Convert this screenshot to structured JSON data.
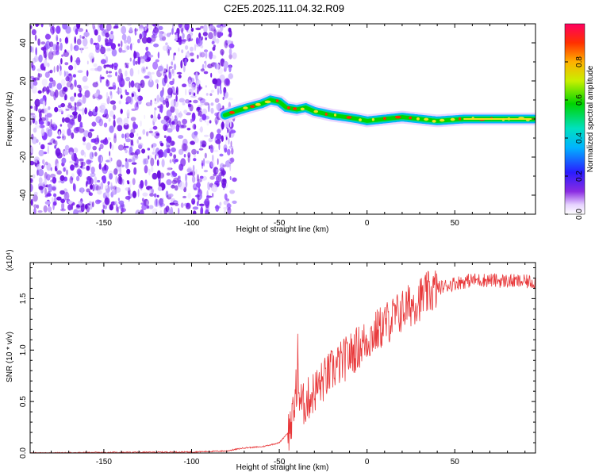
{
  "title": "C2E5.2025.111.04.32.R09",
  "chart_data": [
    {
      "type": "heatmap",
      "xlabel": "Height of straight line (km)",
      "ylabel": "Frequency (Hz)",
      "xlim": [
        -192,
        96
      ],
      "ylim": [
        -50,
        50
      ],
      "x_ticks": [
        -150,
        -100,
        -50,
        0,
        50
      ],
      "y_ticks": [
        -40,
        -20,
        0,
        20,
        40
      ],
      "noise_region_x": [
        -192,
        -80
      ],
      "signal_track": [
        {
          "x": -81,
          "y": 2
        },
        {
          "x": -75,
          "y": 4
        },
        {
          "x": -68,
          "y": 6
        },
        {
          "x": -60,
          "y": 8
        },
        {
          "x": -55,
          "y": 10
        },
        {
          "x": -50,
          "y": 9
        },
        {
          "x": -46,
          "y": 6
        },
        {
          "x": -40,
          "y": 5
        },
        {
          "x": -35,
          "y": 6
        },
        {
          "x": -30,
          "y": 4
        },
        {
          "x": -25,
          "y": 3
        },
        {
          "x": -20,
          "y": 2
        },
        {
          "x": -12,
          "y": 1
        },
        {
          "x": -5,
          "y": 0
        },
        {
          "x": 0,
          "y": -1
        },
        {
          "x": 10,
          "y": 0
        },
        {
          "x": 20,
          "y": 1
        },
        {
          "x": 30,
          "y": 0
        },
        {
          "x": 40,
          "y": -1
        },
        {
          "x": 55,
          "y": 0
        },
        {
          "x": 70,
          "y": 0
        },
        {
          "x": 85,
          "y": 0
        },
        {
          "x": 95,
          "y": 0
        }
      ],
      "colorbar": {
        "label": "Normalized spectral amplitude",
        "range": [
          0,
          1
        ],
        "ticks": [
          "0.0",
          "0.2",
          "0.4",
          "0.6",
          "0.8"
        ]
      }
    },
    {
      "type": "line",
      "xlabel": "Height of straight line (km)",
      "ylabel": "SNR (10 * v/v)",
      "y_multiplier": "(x10⁴)",
      "xlim": [
        -192,
        96
      ],
      "ylim": [
        0,
        1.85
      ],
      "x_ticks": [
        -150,
        -100,
        -50,
        0,
        50
      ],
      "y_ticks": [
        "0.0",
        "0.5",
        "1.0",
        "1.5"
      ],
      "series": [
        {
          "color": "#e8383a",
          "envelope": [
            {
              "x": -192,
              "y": 0.0
            },
            {
              "x": -100,
              "y": 0.01
            },
            {
              "x": -80,
              "y": 0.02
            },
            {
              "x": -70,
              "y": 0.05
            },
            {
              "x": -60,
              "y": 0.06
            },
            {
              "x": -50,
              "y": 0.1
            },
            {
              "x": -45,
              "y": 0.2
            },
            {
              "x": -42,
              "y": 0.35
            },
            {
              "x": -40,
              "y": 0.7
            },
            {
              "x": -37,
              "y": 0.45
            },
            {
              "x": -30,
              "y": 0.6
            },
            {
              "x": -20,
              "y": 0.8
            },
            {
              "x": -10,
              "y": 0.95
            },
            {
              "x": 0,
              "y": 1.1
            },
            {
              "x": 10,
              "y": 1.25
            },
            {
              "x": 20,
              "y": 1.38
            },
            {
              "x": 30,
              "y": 1.5
            },
            {
              "x": 40,
              "y": 1.6
            },
            {
              "x": 50,
              "y": 1.65
            },
            {
              "x": 60,
              "y": 1.68
            },
            {
              "x": 70,
              "y": 1.68
            },
            {
              "x": 80,
              "y": 1.67
            },
            {
              "x": 96,
              "y": 1.66
            }
          ]
        }
      ]
    }
  ]
}
